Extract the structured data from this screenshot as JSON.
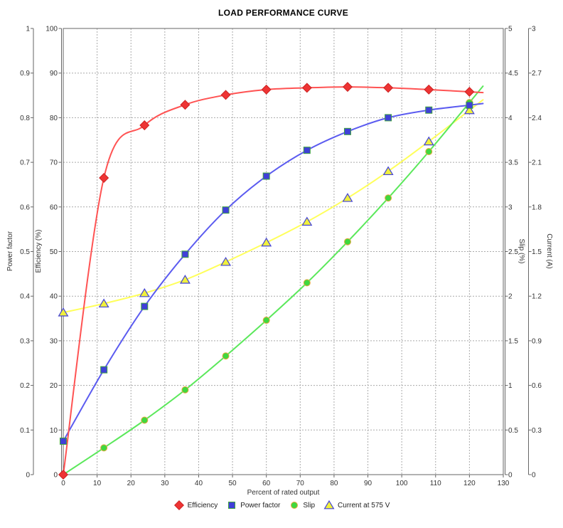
{
  "title": "LOAD PERFORMANCE CURVE",
  "chart_data": {
    "type": "line",
    "title": "LOAD PERFORMANCE CURVE",
    "grid": true,
    "legend_position": "bottom",
    "xaxis": {
      "label": "Percent of rated output",
      "range": [
        0,
        130
      ],
      "ticks": [
        "0",
        "10",
        "20",
        "30",
        "40",
        "50",
        "60",
        "70",
        "80",
        "90",
        "100",
        "110",
        "120",
        "130"
      ]
    },
    "axes": [
      {
        "id": "power_factor",
        "label": "Power factor",
        "side": "left-outer",
        "range": [
          0,
          1
        ],
        "ticks": [
          "0",
          "0.1",
          "0.2",
          "0.3",
          "0.4",
          "0.5",
          "0.6",
          "0.7",
          "0.8",
          "0.9",
          "1"
        ]
      },
      {
        "id": "efficiency",
        "label": "Efficiency (%)",
        "side": "left-inner",
        "range": [
          0,
          100
        ],
        "ticks": [
          "0",
          "10",
          "20",
          "30",
          "40",
          "50",
          "60",
          "70",
          "80",
          "90",
          "100"
        ]
      },
      {
        "id": "slip",
        "label": "Slip (%)",
        "side": "right-inner",
        "range": [
          0,
          5
        ],
        "ticks": [
          "0",
          "0.5",
          "1",
          "1.5",
          "2",
          "2.5",
          "3",
          "3.5",
          "4",
          "4.5",
          "5"
        ]
      },
      {
        "id": "current",
        "label": "Current (A)",
        "side": "right-outer",
        "range": [
          0,
          3
        ],
        "ticks": [
          "0",
          "0.3",
          "0.6",
          "0.9",
          "1.2",
          "1.5",
          "1.8",
          "2.1",
          "2.4",
          "2.7",
          "3"
        ]
      }
    ],
    "x": [
      0,
      12,
      24,
      36,
      48,
      60,
      72,
      84,
      96,
      108,
      120
    ],
    "series": [
      {
        "name": "Efficiency",
        "axis": "efficiency",
        "marker": "diamond",
        "line_color": "#ff5353",
        "marker_fill": "#ee3434",
        "marker_stroke": "#cc2222",
        "values": [
          0,
          66.5,
          78.3,
          82.9,
          85.1,
          86.3,
          86.7,
          86.9,
          86.7,
          86.3,
          85.8
        ]
      },
      {
        "name": "Power factor",
        "axis": "power_factor",
        "marker": "square",
        "line_color": "#5b5bf0",
        "marker_fill": "#4040d8",
        "marker_stroke": "#3fa33f",
        "values": [
          0.075,
          0.235,
          0.377,
          0.494,
          0.593,
          0.669,
          0.727,
          0.769,
          0.8,
          0.817,
          0.828
        ]
      },
      {
        "name": "Slip",
        "axis": "slip",
        "marker": "circle",
        "line_color": "#5be85b",
        "marker_fill": "#3fd83f",
        "marker_stroke": "#e8a83f",
        "values": [
          0,
          0.3,
          0.61,
          0.95,
          1.33,
          1.73,
          2.15,
          2.61,
          3.1,
          3.62,
          4.17
        ]
      },
      {
        "name": "Current at 575 V",
        "axis": "current",
        "marker": "triangle",
        "line_color": "#ffff5b",
        "marker_fill": "#f0f03c",
        "marker_stroke": "#4343d8",
        "values": [
          1.09,
          1.15,
          1.22,
          1.31,
          1.43,
          1.56,
          1.7,
          1.86,
          2.04,
          2.24,
          2.45
        ]
      }
    ],
    "colors": {
      "grid": "#aaaaaa",
      "axis": "#666666",
      "tick_text": "#333333",
      "background": "#ffffff"
    }
  }
}
